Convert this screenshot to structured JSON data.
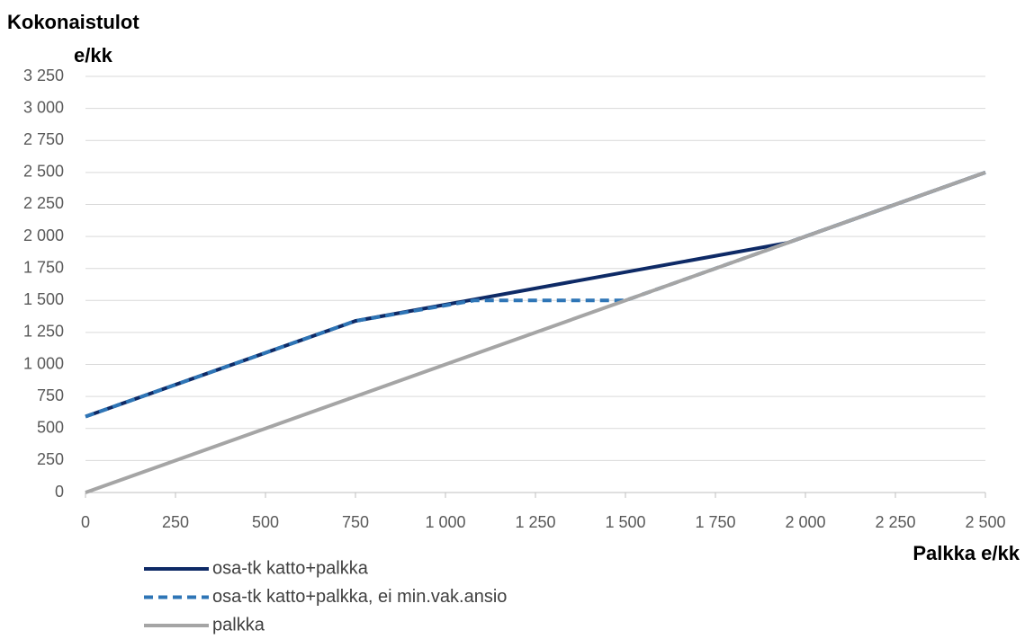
{
  "chart_data": {
    "type": "line",
    "ylabel": [
      "Kokonaistulot",
      "e/kk"
    ],
    "xlabel": "Palkka e/kk",
    "series": [
      {
        "name": "osa-tk katto+palkka",
        "color": "#0e2a66",
        "dash": false,
        "x": [
          0,
          750,
          1950,
          2500
        ],
        "values": [
          593,
          1340,
          1950,
          2500
        ]
      },
      {
        "name": "osa-tk katto+palkka, ei min.vak.ansio",
        "color": "#2e75b6",
        "dash": true,
        "x": [
          0,
          750,
          1080,
          1500,
          2500
        ],
        "values": [
          593,
          1340,
          1500,
          1500,
          2500
        ]
      },
      {
        "name": "palkka",
        "color": "#a5a5a5",
        "dash": false,
        "x": [
          0,
          2500
        ],
        "values": [
          0,
          2500
        ]
      }
    ],
    "xlim": [
      0,
      2500
    ],
    "xticks": [
      0,
      250,
      500,
      750,
      {
        "value": 1000,
        "label": "1 000"
      },
      {
        "value": 1250,
        "label": "1 250"
      },
      {
        "value": 1500,
        "label": "1 500"
      },
      {
        "value": 1750,
        "label": "1 750"
      },
      {
        "value": 2000,
        "label": "2 000"
      },
      {
        "value": 2250,
        "label": "2 250"
      },
      {
        "value": 2500,
        "label": "2 500"
      }
    ],
    "ylim": [
      0,
      3250
    ],
    "yticks": [
      0,
      250,
      500,
      750,
      {
        "value": 1000,
        "label": "1 000"
      },
      {
        "value": 1250,
        "label": "1 250"
      },
      {
        "value": 1500,
        "label": "1 500"
      },
      {
        "value": 1750,
        "label": "1 750"
      },
      {
        "value": 2000,
        "label": "2 000"
      },
      {
        "value": 2250,
        "label": "2 250"
      },
      {
        "value": 2500,
        "label": "2 500"
      },
      {
        "value": 2750,
        "label": "2 750"
      },
      {
        "value": 3000,
        "label": "3 000"
      },
      {
        "value": 3250,
        "label": "3 250"
      }
    ],
    "grid": true
  }
}
